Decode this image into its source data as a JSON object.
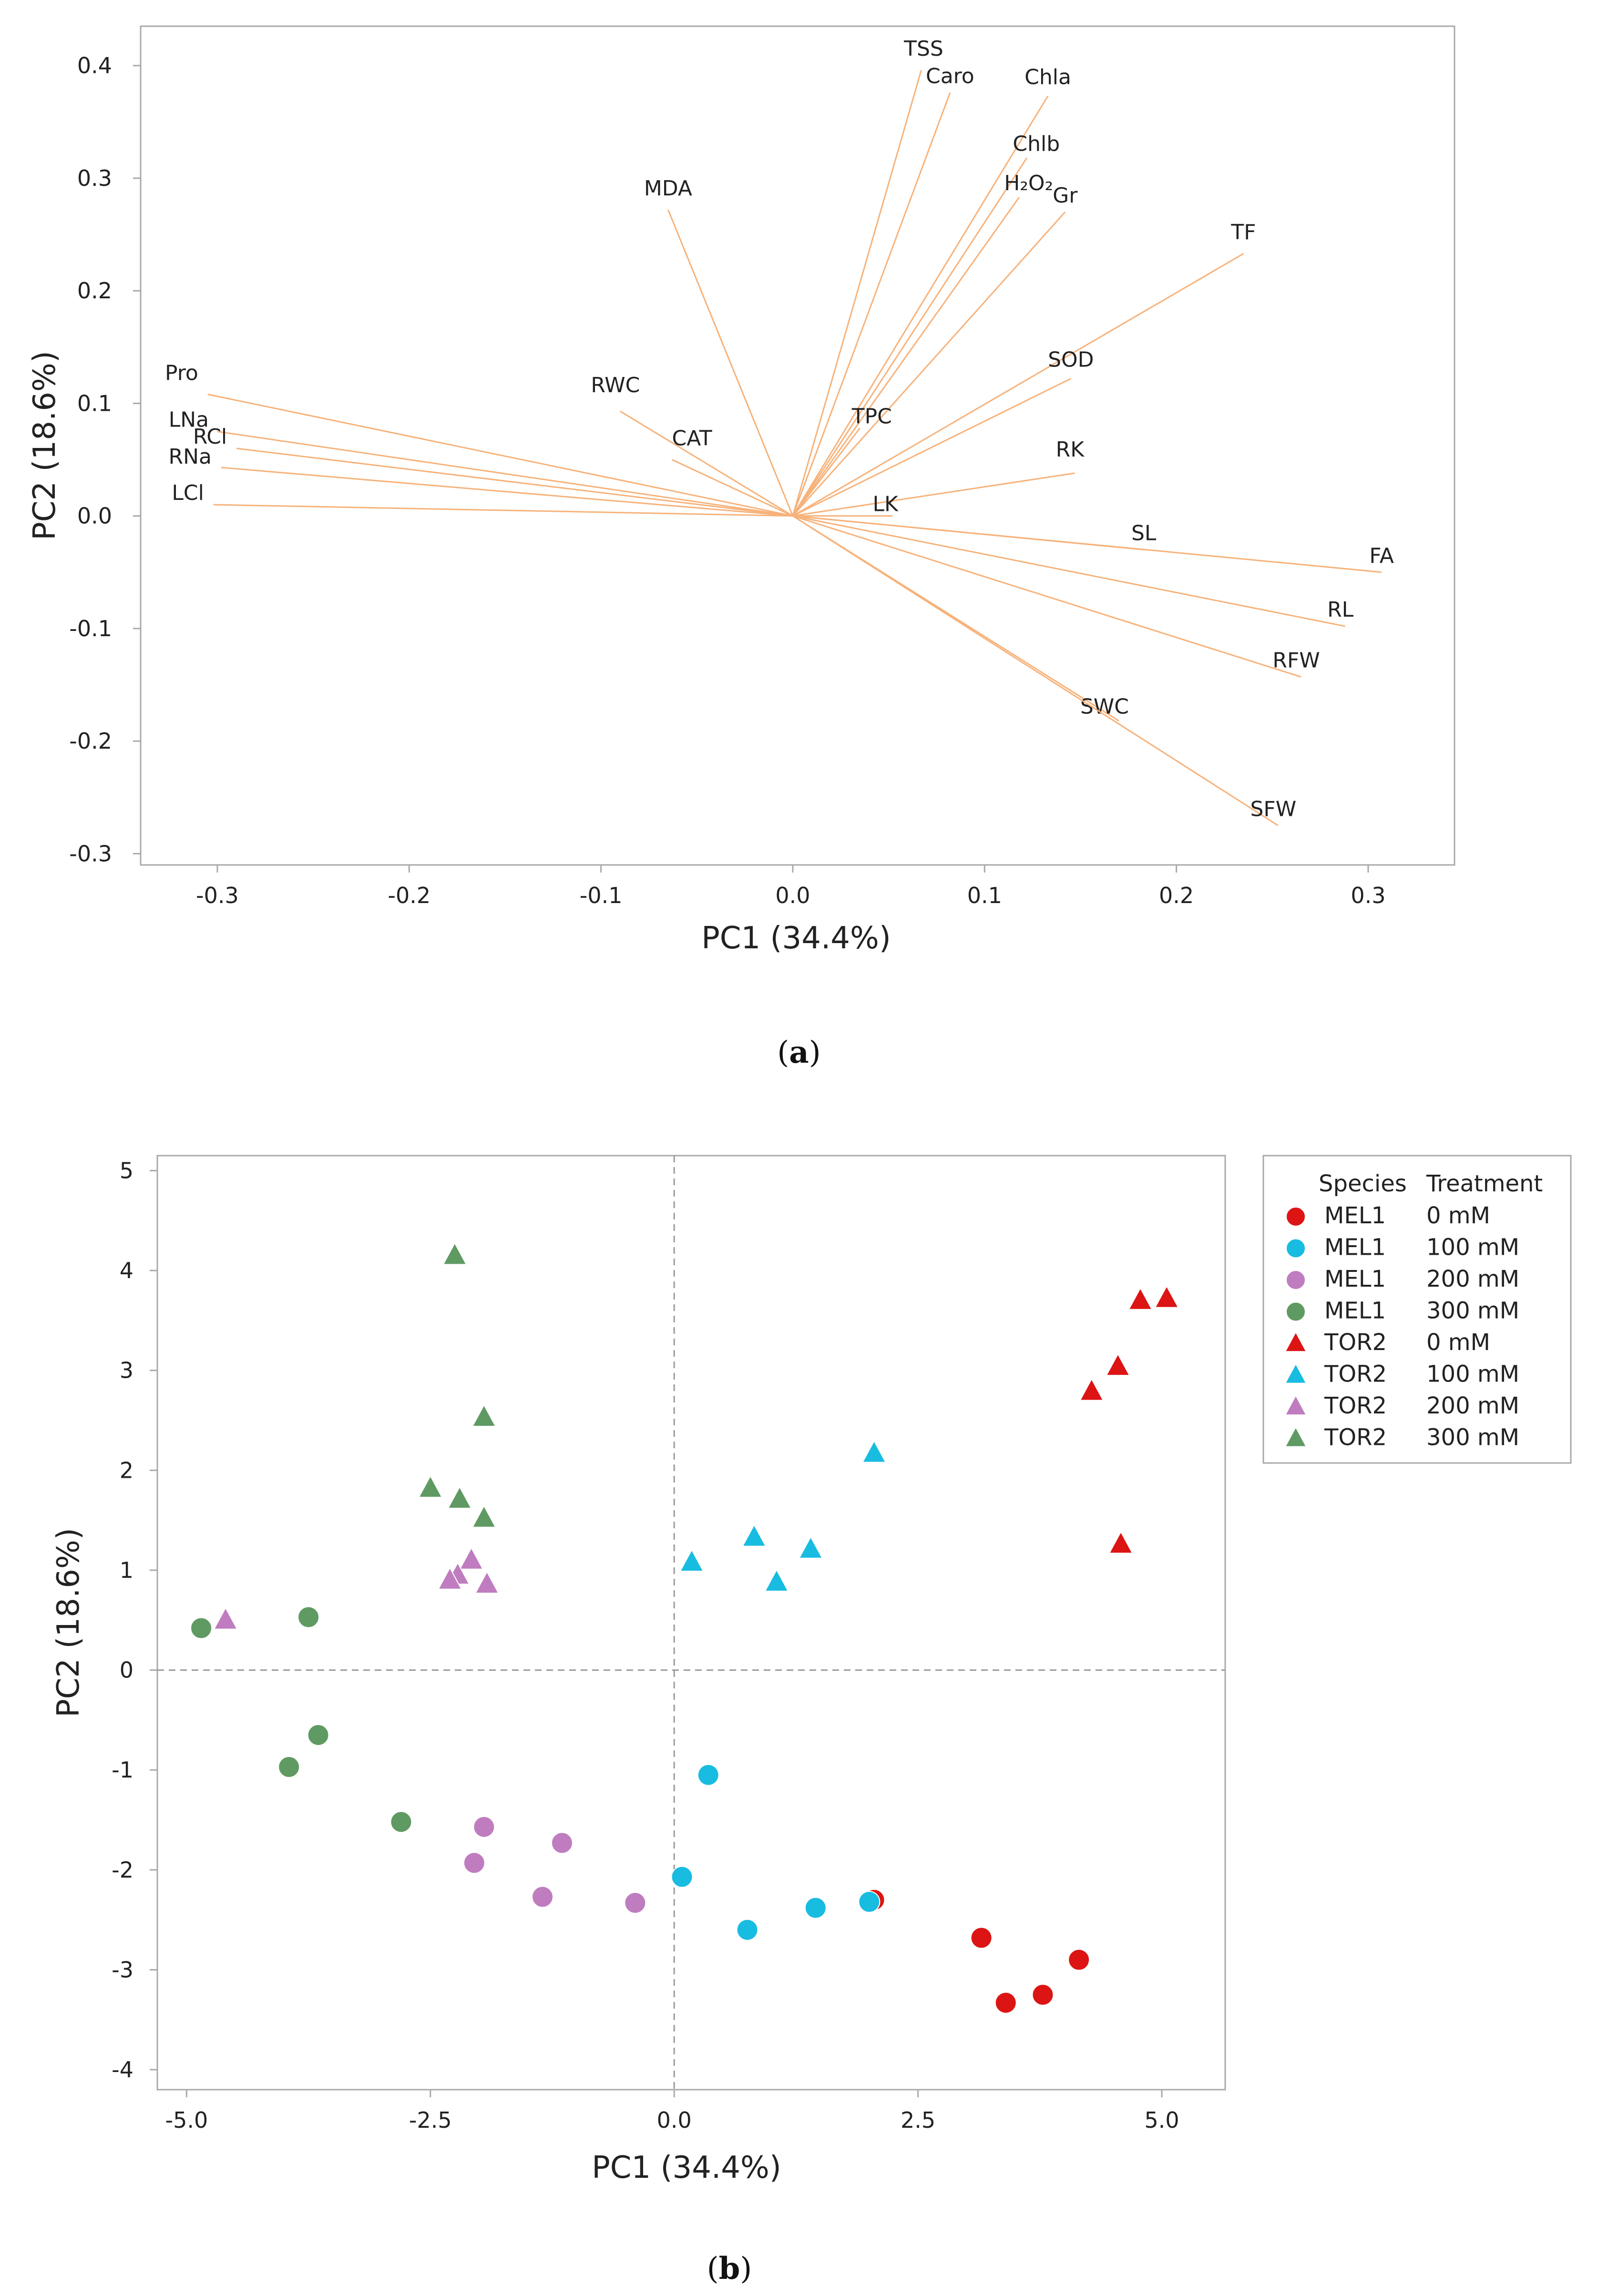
{
  "colors": {
    "loading": "#f7b27a",
    "frame": "#a9a9a9",
    "zero_line": "#9a9a9a",
    "red": "#dc1414",
    "cyan": "#18bce0",
    "pink": "#bf7dc0",
    "green": "#5f9a62"
  },
  "chart_data": [
    {
      "type": "scatter",
      "subtype": "pca-loading-plot",
      "panel_label": "a",
      "xlabel": "PC1 (34.4%)",
      "ylabel": "PC2 (18.6%)",
      "xlim": [
        -0.34,
        0.345
      ],
      "ylim": [
        -0.31,
        0.435
      ],
      "xticks": [
        -0.3,
        -0.2,
        -0.1,
        0.0,
        0.1,
        0.2,
        0.3
      ],
      "xtick_labels": [
        "-0.3",
        "-0.2",
        "-0.1",
        "0.0",
        "0.1",
        "0.2",
        "0.3"
      ],
      "yticks": [
        -0.3,
        -0.2,
        -0.1,
        0.0,
        0.1,
        0.2,
        0.3,
        0.4
      ],
      "ytick_labels": [
        "-0.3",
        "-0.2",
        "-0.1",
        "0.0",
        "0.1",
        "0.2",
        "0.3",
        "0.4"
      ],
      "grid": false,
      "vectors": [
        {
          "name": "Pro",
          "x": -0.305,
          "y": 0.108
        },
        {
          "name": "LNa",
          "x": -0.3,
          "y": 0.075
        },
        {
          "name": "RCl",
          "x": -0.29,
          "y": 0.06
        },
        {
          "name": "RNa",
          "x": -0.298,
          "y": 0.043
        },
        {
          "name": "LCl",
          "x": -0.302,
          "y": 0.01
        },
        {
          "name": "RWC",
          "x": -0.09,
          "y": 0.093
        },
        {
          "name": "CAT",
          "x": -0.063,
          "y": 0.05
        },
        {
          "name": "MDA",
          "x": -0.065,
          "y": 0.272
        },
        {
          "name": "TSS",
          "x": 0.067,
          "y": 0.396
        },
        {
          "name": "Caro",
          "x": 0.082,
          "y": 0.376
        },
        {
          "name": "Chla",
          "x": 0.133,
          "y": 0.373
        },
        {
          "name": "Chlb",
          "x": 0.122,
          "y": 0.318
        },
        {
          "name": "H₂O₂",
          "x": 0.118,
          "y": 0.283
        },
        {
          "name": "Gr",
          "x": 0.142,
          "y": 0.27
        },
        {
          "name": "TF",
          "x": 0.235,
          "y": 0.233
        },
        {
          "name": "SOD",
          "x": 0.145,
          "y": 0.122
        },
        {
          "name": "TPC",
          "x": 0.035,
          "y": 0.078
        },
        {
          "name": "RK",
          "x": 0.147,
          "y": 0.038
        },
        {
          "name": "LK",
          "x": 0.052,
          "y": 0.0
        },
        {
          "name": "SL",
          "x": 0.183,
          "y": -0.03
        },
        {
          "name": "FA",
          "x": 0.307,
          "y": -0.05
        },
        {
          "name": "RL",
          "x": 0.288,
          "y": -0.098
        },
        {
          "name": "RFW",
          "x": 0.265,
          "y": -0.143
        },
        {
          "name": "SWC",
          "x": 0.17,
          "y": -0.182
        },
        {
          "name": "SFW",
          "x": 0.253,
          "y": -0.275
        }
      ]
    },
    {
      "type": "scatter",
      "subtype": "pca-score-plot",
      "panel_label": "b",
      "xlabel": "PC1 (34.4%)",
      "ylabel": "PC2 (18.6%)",
      "xlim": [
        -5.3,
        5.65
      ],
      "ylim": [
        -4.2,
        5.15
      ],
      "xticks": [
        -5.0,
        -2.5,
        0.0,
        2.5,
        5.0
      ],
      "xtick_labels": [
        "-5.0",
        "-2.5",
        "0.0",
        "2.5",
        "5.0"
      ],
      "yticks": [
        -4,
        -3,
        -2,
        -1,
        0,
        1,
        2,
        3,
        4,
        5
      ],
      "ytick_labels": [
        "-4",
        "-3",
        "-2",
        "-1",
        "0",
        "1",
        "2",
        "3",
        "4",
        "5"
      ],
      "grid": false,
      "zero_lines": true,
      "legend": {
        "position": "right-outside",
        "headers": [
          "Species",
          "Treatment"
        ]
      },
      "series": [
        {
          "name": "MEL1 0 mM",
          "species": "MEL1",
          "treatment": "0 mM",
          "marker": "circle",
          "color_key": "red",
          "points": [
            [
              2.05,
              -2.3
            ],
            [
              3.15,
              -2.68
            ],
            [
              3.4,
              -3.33
            ],
            [
              3.78,
              -3.25
            ],
            [
              4.15,
              -2.9
            ]
          ]
        },
        {
          "name": "MEL1 100 mM",
          "species": "MEL1",
          "treatment": "100 mM",
          "marker": "circle",
          "color_key": "cyan",
          "points": [
            [
              0.35,
              -1.05
            ],
            [
              0.08,
              -2.07
            ],
            [
              0.75,
              -2.6
            ],
            [
              1.45,
              -2.38
            ],
            [
              2.0,
              -2.32
            ]
          ]
        },
        {
          "name": "MEL1 200 mM",
          "species": "MEL1",
          "treatment": "200 mM",
          "marker": "circle",
          "color_key": "pink",
          "points": [
            [
              -1.95,
              -1.57
            ],
            [
              -1.15,
              -1.73
            ],
            [
              -2.05,
              -1.93
            ],
            [
              -1.35,
              -2.27
            ],
            [
              -0.4,
              -2.33
            ]
          ]
        },
        {
          "name": "MEL1 300 mM",
          "species": "MEL1",
          "treatment": "300 mM",
          "marker": "circle",
          "color_key": "green",
          "points": [
            [
              -4.85,
              0.42
            ],
            [
              -3.75,
              0.53
            ],
            [
              -3.65,
              -0.65
            ],
            [
              -3.95,
              -0.97
            ],
            [
              -2.8,
              -1.52
            ]
          ]
        },
        {
          "name": "TOR2 0 mM",
          "species": "TOR2",
          "treatment": "0 mM",
          "marker": "triangle",
          "color_key": "red",
          "points": [
            [
              4.78,
              3.7
            ],
            [
              5.05,
              3.72
            ],
            [
              4.55,
              3.04
            ],
            [
              4.28,
              2.79
            ],
            [
              4.58,
              1.26
            ]
          ]
        },
        {
          "name": "TOR2 100 mM",
          "species": "TOR2",
          "treatment": "100 mM",
          "marker": "triangle",
          "color_key": "cyan",
          "points": [
            [
              2.05,
              2.17
            ],
            [
              0.82,
              1.33
            ],
            [
              1.4,
              1.21
            ],
            [
              0.18,
              1.08
            ],
            [
              1.05,
              0.88
            ]
          ]
        },
        {
          "name": "TOR2 200 mM",
          "species": "TOR2",
          "treatment": "200 mM",
          "marker": "triangle",
          "color_key": "pink",
          "points": [
            [
              -2.08,
              1.1
            ],
            [
              -2.22,
              0.95
            ],
            [
              -2.3,
              0.9
            ],
            [
              -1.92,
              0.86
            ],
            [
              -4.6,
              0.5
            ]
          ]
        },
        {
          "name": "TOR2 300 mM",
          "species": "TOR2",
          "treatment": "300 mM",
          "marker": "triangle",
          "color_key": "green",
          "points": [
            [
              -2.25,
              4.15
            ],
            [
              -1.95,
              2.53
            ],
            [
              -2.5,
              1.82
            ],
            [
              -2.2,
              1.71
            ],
            [
              -1.95,
              1.52
            ]
          ]
        }
      ]
    }
  ]
}
